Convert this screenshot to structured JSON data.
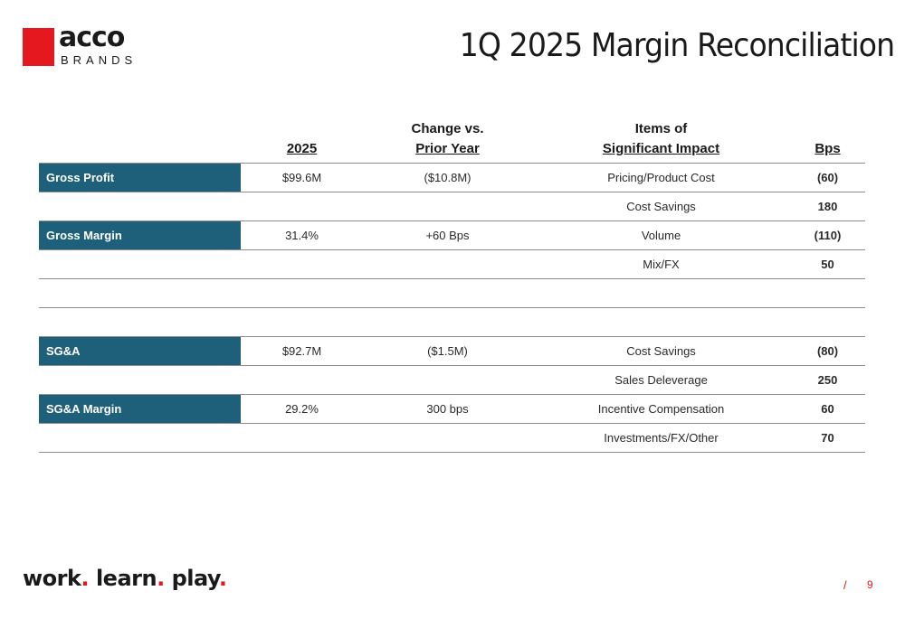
{
  "logo": {
    "brand": "acco",
    "sub": "BRANDS"
  },
  "title": "1Q 2025 Margin Reconciliation",
  "table": {
    "headers": {
      "col_2025": "2025",
      "change_line1": "Change vs.",
      "change_line2": "Prior Year",
      "items_line1": "Items of",
      "items_line2": "Significant Impact",
      "bps": "Bps"
    },
    "rows": [
      {
        "label": "Gross Profit",
        "value": "$99.6M",
        "change": "($10.8M)",
        "item": "Pricing/Product Cost",
        "bps": "(60)"
      },
      {
        "label": "",
        "value": "",
        "change": "",
        "item": "Cost Savings",
        "bps": "180"
      },
      {
        "label": "Gross Margin",
        "value": "31.4%",
        "change": "+60 Bps",
        "item": "Volume",
        "bps": "(110)"
      },
      {
        "label": "",
        "value": "",
        "change": "",
        "item": "Mix/FX",
        "bps": "50"
      },
      {
        "label": "",
        "value": "",
        "change": "",
        "item": "",
        "bps": ""
      },
      {
        "label": "",
        "value": "",
        "change": "",
        "item": "",
        "bps": ""
      },
      {
        "label": "SG&A",
        "value": "$92.7M",
        "change": "($1.5M)",
        "item": "Cost Savings",
        "bps": "(80)"
      },
      {
        "label": "",
        "value": "",
        "change": "",
        "item": "Sales Deleverage",
        "bps": "250"
      },
      {
        "label": "SG&A Margin",
        "value": "29.2%",
        "change": "300 bps",
        "item": "Incentive Compensation",
        "bps": "60"
      },
      {
        "label": "",
        "value": "",
        "change": "",
        "item": "Investments/FX/Other",
        "bps": "70"
      }
    ]
  },
  "footer": {
    "word1": "work",
    "word2": "learn",
    "word3": "play",
    "dot": ".",
    "separator": "/",
    "page": "9"
  },
  "colors": {
    "accent_red": "#e5181f",
    "label_blue": "#1e5f7a"
  }
}
